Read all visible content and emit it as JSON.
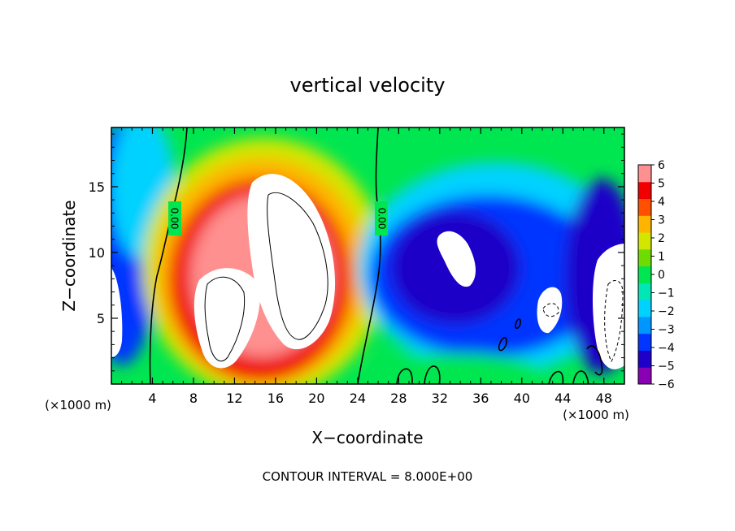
{
  "chart_data": {
    "type": "heatmap",
    "title": "vertical velocity",
    "xlabel": "X−coordinate",
    "ylabel": "Z−coordinate",
    "x_unit_left": "(×1000 m)",
    "x_unit_right": "(×1000 m)",
    "footer": "CONTOUR INTERVAL = 8.000E+00",
    "contour_label": "0.00",
    "xlim": [
      0,
      50
    ],
    "ylim": [
      0,
      19.5
    ],
    "x_ticks": [
      "4",
      "8",
      "12",
      "16",
      "20",
      "24",
      "28",
      "32",
      "36",
      "40",
      "44",
      "48"
    ],
    "y_ticks": [
      "5",
      "10",
      "15"
    ],
    "colorbar": {
      "levels": [
        -6,
        -5,
        -4,
        -3,
        -2,
        -1,
        0,
        1,
        2,
        3,
        4,
        5,
        6
      ],
      "labels": [
        "6",
        "5",
        "4",
        "3",
        "2",
        "1",
        "0",
        "−1",
        "−2",
        "−3",
        "−4",
        "−5",
        "−6"
      ],
      "colors": [
        "#8a00b4",
        "#1e00c8",
        "#0036ff",
        "#0096ff",
        "#00d2ff",
        "#00e6b4",
        "#00e650",
        "#6edc00",
        "#d2e600",
        "#ffb400",
        "#ff5000",
        "#f00000",
        "#ff9090"
      ],
      "over_color": "#ffffff"
    }
  }
}
